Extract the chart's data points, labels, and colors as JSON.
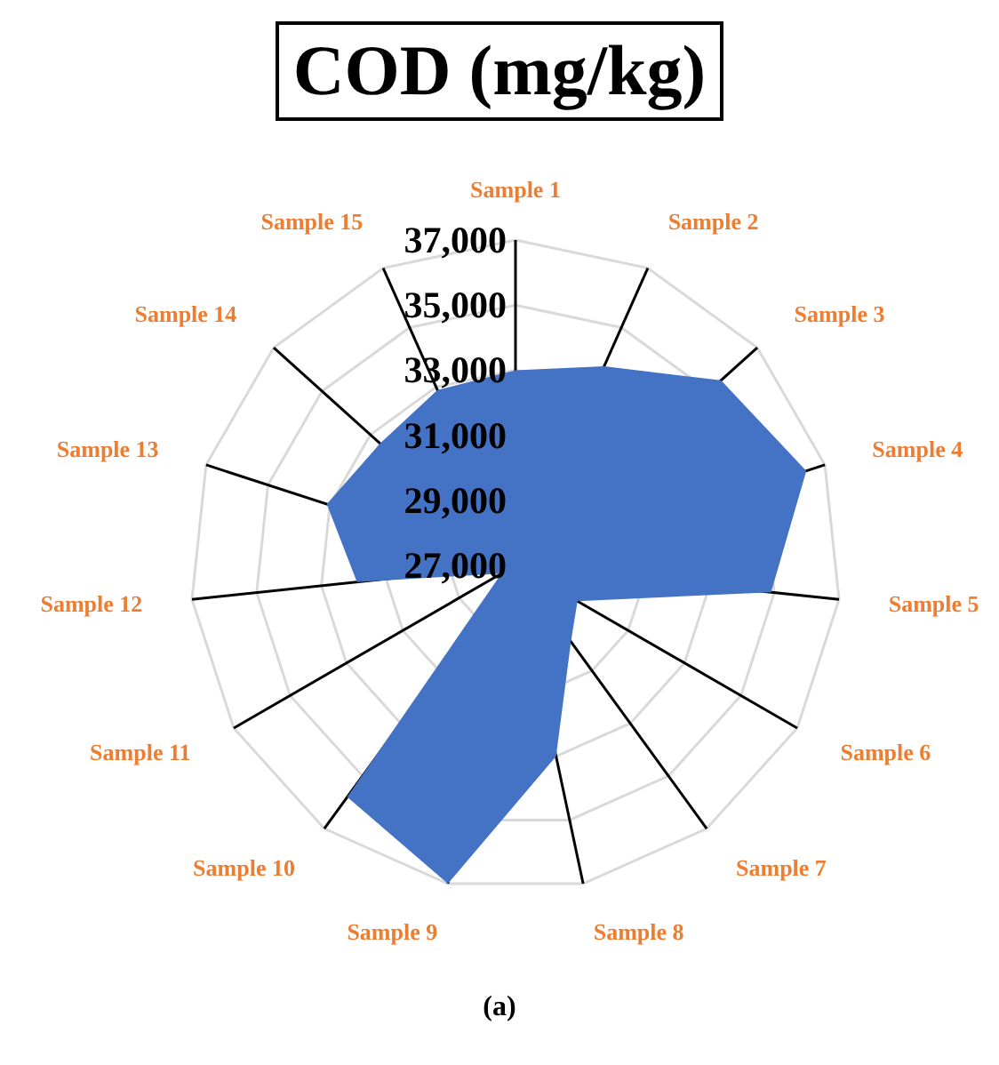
{
  "chart_data": {
    "type": "radar",
    "title": "COD (mg/kg)",
    "categories": [
      "Sample 1",
      "Sample 2",
      "Sample 3",
      "Sample 4",
      "Sample 5",
      "Sample 6",
      "Sample 7",
      "Sample 8",
      "Sample 9",
      "Sample 10",
      "Sample 11",
      "Sample 12",
      "Sample 13",
      "Sample 14",
      "Sample 15"
    ],
    "series": [
      {
        "color": "#4472c4",
        "values": [
          33000,
          33700,
          35500,
          36400,
          34900,
          29200,
          29900,
          33000,
          37000,
          35800,
          27500,
          31900,
          33100,
          32600,
          32900
        ]
      }
    ],
    "ylim": [
      27000,
      37000
    ],
    "yticks": [
      {
        "value": 27000,
        "label": "27,000"
      },
      {
        "value": 29000,
        "label": "29,000"
      },
      {
        "value": 31000,
        "label": "31,000"
      },
      {
        "value": 33000,
        "label": "33,000"
      },
      {
        "value": 35000,
        "label": "35,000"
      },
      {
        "value": 37000,
        "label": "37,000"
      }
    ],
    "grid": true,
    "annotations": [
      "(a)"
    ]
  }
}
